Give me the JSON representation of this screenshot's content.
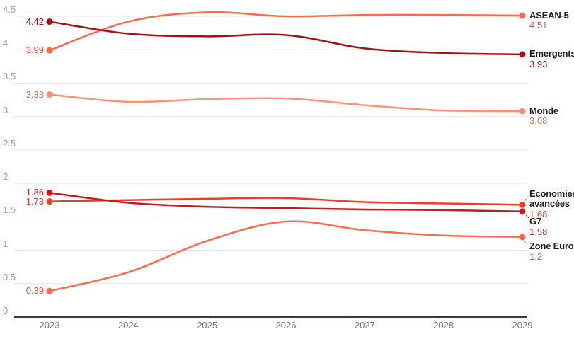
{
  "chart_data": {
    "type": "line",
    "x": [
      2023,
      2024,
      2025,
      2026,
      2027,
      2028,
      2029
    ],
    "x_labels": [
      "2023",
      "2024",
      "2025",
      "2026",
      "2027",
      "2028",
      "2029"
    ],
    "y_ticks": [
      "0",
      "0.5",
      "1",
      "1.5",
      "2",
      "2.5",
      "3",
      "3.5",
      "4",
      "4.5"
    ],
    "ylim": [
      0,
      4.5
    ],
    "grid": true,
    "legend_position": "end-of-line-labels-right",
    "series": [
      {
        "name": "Monde",
        "values": [
          3.33,
          3.22,
          3.26,
          3.27,
          3.17,
          3.09,
          3.08
        ],
        "color": "#fc9272",
        "value_color": "#bd7952",
        "start_label": "3.33",
        "end_label": "3.08",
        "label_dy": 0
      },
      {
        "name": "Zone Euro",
        "values": [
          0.39,
          0.67,
          1.14,
          1.43,
          1.3,
          1.22,
          1.2
        ],
        "color": "#fb6a4a",
        "value_color": "#d9604a",
        "start_label": "0.39",
        "end_label": "1.2",
        "label_dy": 14,
        "leader": [
          [
            1,
            3
          ],
          [
            8,
            12
          ]
        ]
      },
      {
        "name": "ASEAN-5",
        "values": [
          3.99,
          4.42,
          4.56,
          4.5,
          4.52,
          4.52,
          4.51
        ],
        "color": "#fb6a4a",
        "value_color": "#ee4d38",
        "start_label": "3.99",
        "end_label": "4.51",
        "label_dy": 0
      },
      {
        "name": "Economies avancées",
        "values": [
          1.73,
          1.75,
          1.77,
          1.78,
          1.72,
          1.7,
          1.68
        ],
        "color": "#ef3b2c",
        "value_color": "#ea3a2d",
        "start_label": "1.73",
        "end_label": "1.68",
        "label_dy": -15,
        "leader": [
          [
            2,
            -3
          ],
          [
            10,
            -15
          ]
        ]
      },
      {
        "name": "Emergents",
        "values": [
          4.42,
          4.24,
          4.2,
          4.22,
          4.02,
          3.95,
          3.93
        ],
        "color": "#a50f15",
        "value_color": "#a50f15",
        "start_label": "4.42",
        "end_label": "3.93",
        "label_dy": 0
      },
      {
        "name": "G7",
        "values": [
          1.86,
          1.71,
          1.65,
          1.63,
          1.61,
          1.6,
          1.58
        ],
        "color": "#cb181d",
        "value_color": "#cf2a24",
        "start_label": "1.86",
        "end_label": "1.58",
        "label_dy": 15,
        "leader": [
          [
            2,
            3
          ],
          [
            9,
            9
          ]
        ]
      }
    ]
  },
  "colors": {
    "background": "#ffffff",
    "grid": "#e4e4e4",
    "axis_line": "#3d3d3d",
    "y_tick_text": "#9e9e9e",
    "x_tick_text": "#757575",
    "series_name_text": "#1f1f1f"
  }
}
